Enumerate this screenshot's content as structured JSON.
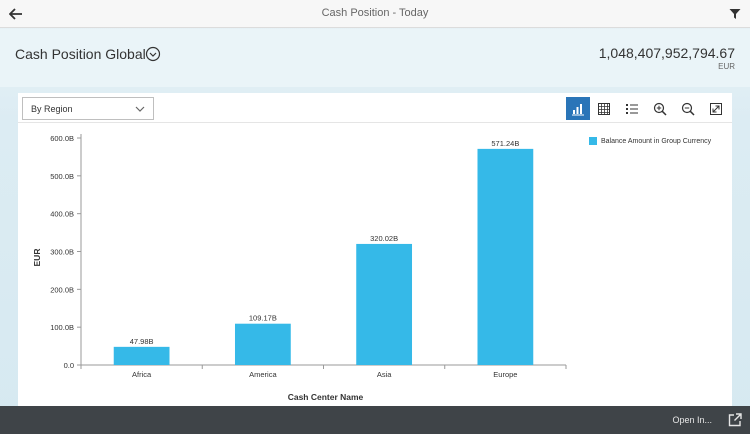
{
  "topbar": {
    "title": "Cash Position - Today",
    "back_icon": "arrow-left-icon",
    "filter_icon": "filter-funnel-icon"
  },
  "header": {
    "page_title": "Cash Position Global",
    "kpi_value": "1,048,407,952,794.67",
    "kpi_unit": "EUR"
  },
  "toolbar": {
    "group_by_selected": "By Region",
    "buttons": [
      {
        "name": "chart-view-icon",
        "active": true
      },
      {
        "name": "table-view-icon",
        "active": false
      },
      {
        "name": "legend-toggle-icon",
        "active": false
      },
      {
        "name": "zoom-in-icon",
        "active": false
      },
      {
        "name": "zoom-out-icon",
        "active": false
      },
      {
        "name": "fullscreen-icon",
        "active": false
      }
    ]
  },
  "colors": {
    "bar": "#35b9e8",
    "active_button": "#2a75b8",
    "footer": "#3f4448"
  },
  "chart_data": {
    "type": "bar",
    "categories": [
      "Africa",
      "America",
      "Asia",
      "Europe"
    ],
    "series": [
      {
        "name": "Balance Amount in Group Currency",
        "values": [
          47.98,
          109.17,
          320.02,
          571.24
        ],
        "labels": [
          "47.98B",
          "109.17B",
          "320.02B",
          "571.24B"
        ]
      }
    ],
    "ylim": [
      0,
      600
    ],
    "yticks": [
      0,
      100,
      200,
      300,
      400,
      500,
      600
    ],
    "ytick_labels": [
      "0.0",
      "100.0B",
      "200.0B",
      "300.0B",
      "400.0B",
      "500.0B",
      "600.0B"
    ],
    "xlabel": "Cash Center Name",
    "ylabel": "EUR",
    "legend_position": "top-right",
    "grid": false
  },
  "footer": {
    "open_in_label": "Open In..."
  }
}
